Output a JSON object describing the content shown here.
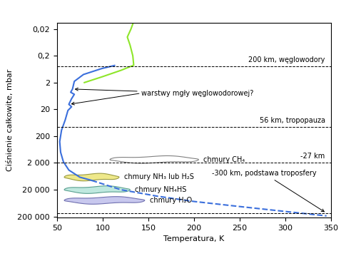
{
  "chart_data": {
    "type": "line",
    "xlabel": "Temperatura, K",
    "ylabel": "Ciśnienie całkowite, mbar",
    "log": "y",
    "xlim": [
      50,
      350
    ],
    "xticks": [
      50,
      100,
      150,
      200,
      250,
      300,
      350
    ],
    "ylim": [
      220000,
      0.012
    ],
    "yticks": [
      {
        "value": 0.02,
        "label": "0,02"
      },
      {
        "value": 0.2,
        "label": "0,2"
      },
      2,
      20,
      200,
      {
        "value": 2000,
        "label": "2 000"
      },
      {
        "value": 20000,
        "label": "20 000"
      },
      {
        "value": 200000,
        "label": "200 000"
      }
    ],
    "series": [
      {
        "color": "#3b6fdc",
        "line_style": "solid",
        "x": [
          113,
          99,
          79,
          69,
          67,
          65,
          69,
          66,
          63,
          66,
          62,
          59,
          55,
          53,
          54,
          57,
          63,
          75,
          88
        ],
        "values": [
          0.46,
          0.6,
          1.0,
          1.8,
          3.5,
          4.6,
          5.5,
          8,
          13,
          16,
          22,
          50,
          120,
          320,
          800,
          1800,
          3700,
          6800,
          9000
        ]
      },
      {
        "color": "#3b6fdc",
        "line_style": "dashed",
        "x": [
          88,
          120,
          160,
          200,
          250,
          300,
          345
        ],
        "values": [
          9000,
          20000,
          35000,
          55000,
          85000,
          130000,
          190000
        ]
      },
      {
        "color": "#8ee62a",
        "line_style": "solid",
        "x": [
          80,
          100,
          120,
          134,
          133,
          130,
          127,
          131,
          133
        ],
        "values": [
          2,
          1.2,
          0.7,
          0.45,
          0.2,
          0.08,
          0.04,
          0.02,
          0.013
        ]
      }
    ],
    "levels": [
      {
        "value": 0.5,
        "label": "200 km, węglowodory"
      },
      {
        "value": 90,
        "label": "56 km, tropopauza"
      },
      {
        "value": 2000,
        "label": "-27 km"
      },
      {
        "value": 150000,
        "label": "-300 km, podstawa troposfery"
      }
    ],
    "clouds": [
      {
        "label": "chmury CH₄",
        "x": [
          108,
          205
        ],
        "value": 1500,
        "color": "none",
        "edge": "#808080"
      },
      {
        "label": "chmury NH₃ lub H₂S",
        "x": [
          58,
          118
        ],
        "value": 6800,
        "color": "#eee88a",
        "edge": "#9a9a40"
      },
      {
        "label": "chmury NH₄HS",
        "x": [
          58,
          130
        ],
        "value": 20000,
        "color": "#bfe8df",
        "edge": "#5aa090"
      },
      {
        "label": "chmury H₂O",
        "x": [
          58,
          146
        ],
        "value": 50000,
        "color": "#c8c8ee",
        "edge": "#7070b0"
      }
    ],
    "annotation": {
      "text": "warstwy mgły węglowodorowej?",
      "x": 142,
      "y": 5,
      "points": [
        [
          67,
          3.5
        ],
        [
          63,
          13
        ]
      ]
    }
  }
}
